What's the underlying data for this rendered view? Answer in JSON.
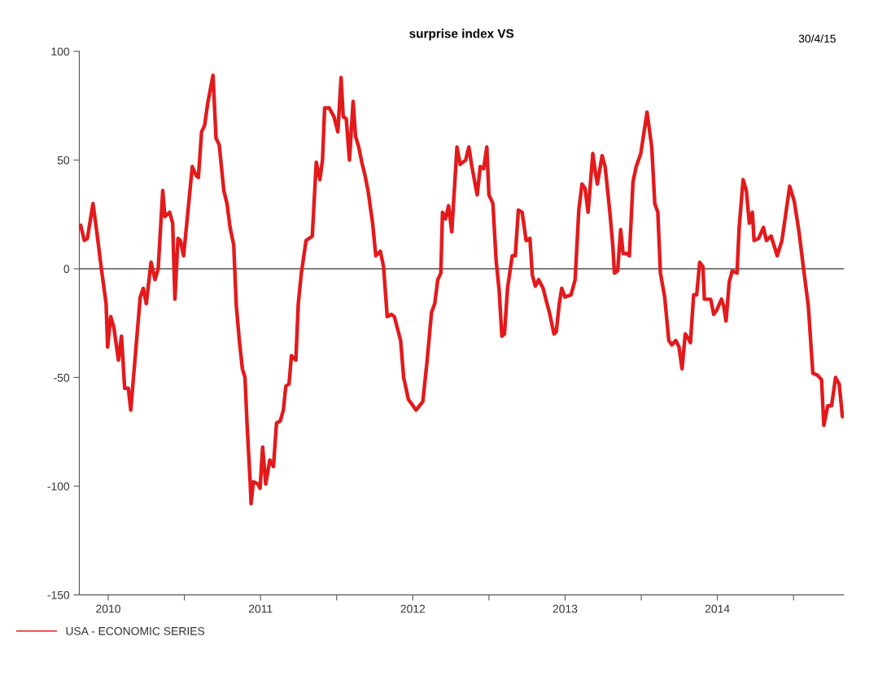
{
  "chart_data": {
    "type": "line",
    "title": "surprise index VS",
    "annotations": [
      "30/4/15"
    ],
    "x": [
      2010.319,
      2010.343,
      2010.363,
      2010.4,
      2010.425,
      2010.455,
      2010.486,
      2010.496,
      2010.516,
      2010.537,
      2010.567,
      2010.587,
      2010.608,
      2010.632,
      2010.648,
      2010.679,
      2010.71,
      2010.73,
      2010.75,
      2010.781,
      2010.807,
      2010.828,
      2010.858,
      2010.872,
      2010.903,
      2010.923,
      2010.938,
      2010.958,
      2010.974,
      2010.995,
      2011.052,
      2011.076,
      2011.092,
      2011.113,
      2011.133,
      2011.153,
      2011.188,
      2011.208,
      2011.229,
      2011.259,
      2011.28,
      2011.3,
      2011.324,
      2011.341,
      2011.361,
      2011.381,
      2011.398,
      2011.412,
      2011.432,
      2011.438,
      2011.453,
      2011.483,
      2011.497,
      2011.514,
      2011.534,
      2011.561,
      2011.585,
      2011.605,
      2011.63,
      2011.65,
      2011.666,
      2011.687,
      2011.703,
      2011.732,
      2011.748,
      2011.768,
      2011.799,
      2011.84,
      2011.866,
      2011.89,
      2011.907,
      2011.921,
      2011.951,
      2011.982,
      2012.008,
      2012.029,
      2012.043,
      2012.063,
      2012.084,
      2012.108,
      2012.124,
      2012.145,
      2012.165,
      2012.186,
      2012.206,
      2012.236,
      2012.257,
      2012.287,
      2012.308,
      2012.332,
      2012.359,
      2012.379,
      2012.42,
      2012.44,
      2012.471,
      2012.521,
      2012.566,
      2012.593,
      2012.623,
      2012.644,
      2012.664,
      2012.684,
      2012.695,
      2012.715,
      2012.735,
      2012.756,
      2012.79,
      2012.811,
      2012.847,
      2012.868,
      2012.888,
      2012.923,
      2012.943,
      2012.965,
      2012.986,
      2013.0,
      2013.026,
      2013.047,
      2013.067,
      2013.085,
      2013.102,
      2013.122,
      2013.153,
      2013.173,
      2013.193,
      2013.218,
      2013.244,
      2013.269,
      2013.285,
      2013.305,
      2013.326,
      2013.356,
      2013.381,
      2013.397,
      2013.427,
      2013.442,
      2013.462,
      2013.478,
      2013.499,
      2013.539,
      2013.566,
      2013.59,
      2013.611,
      2013.631,
      2013.651,
      2013.682,
      2013.702,
      2013.712,
      2013.743,
      2013.763,
      2013.794,
      2013.814,
      2013.824,
      2013.845,
      2013.865,
      2013.881,
      2013.906,
      2013.922,
      2013.946,
      2013.967,
      2013.997,
      2014.038,
      2014.069,
      2014.089,
      2014.109,
      2014.126,
      2014.154,
      2014.181,
      2014.201,
      2014.227,
      2014.248,
      2014.268,
      2014.289,
      2014.309,
      2014.323,
      2014.344,
      2014.364,
      2014.384,
      2014.405,
      2014.415,
      2014.435,
      2014.456,
      2014.476,
      2014.496,
      2014.527,
      2014.541,
      2014.557,
      2014.578,
      2014.598,
      2014.629,
      2014.643,
      2014.669,
      2014.69,
      2014.71,
      2014.73,
      2014.741,
      2014.771,
      2014.802,
      2014.822,
      2014.853,
      2014.893,
      2014.924,
      2014.975,
      2015.005,
      2015.036,
      2015.066,
      2015.097,
      2015.127,
      2015.158,
      2015.184,
      2015.199,
      2015.225,
      2015.25,
      2015.276,
      2015.3,
      2015.321
    ],
    "series": [
      {
        "name": "USA - ECONOMIC SERIES",
        "color": "#e31a1c",
        "values": [
          20,
          13,
          14,
          30,
          17,
          0,
          -16,
          -36,
          -22,
          -27,
          -42,
          -31,
          -55,
          -55,
          -65,
          -39,
          -13,
          -9,
          -16,
          3,
          -5,
          0,
          36,
          24,
          26,
          21,
          -14,
          14,
          13,
          6,
          47,
          43,
          42,
          63,
          66,
          76,
          89,
          60,
          57,
          36,
          30,
          19,
          11,
          -17,
          -33,
          -46,
          -50,
          -72,
          -98,
          -108,
          -98,
          -99,
          -101,
          -82,
          -99,
          -88,
          -91,
          -71,
          -70,
          -65,
          -54,
          -53,
          -40,
          -42,
          -16,
          -2,
          13,
          15,
          49,
          41,
          50,
          74,
          74,
          70,
          63,
          88,
          70,
          69,
          50,
          77,
          61,
          56,
          49,
          43,
          36,
          21,
          6,
          8,
          1,
          -22,
          -21,
          -22,
          -33,
          -50,
          -60,
          -65,
          -61,
          -43,
          -20,
          -16,
          -5,
          -2,
          26,
          23,
          29,
          17,
          56,
          48,
          50,
          56,
          47,
          34,
          47,
          46,
          56,
          34,
          30,
          4,
          -10,
          -31,
          -30,
          -9,
          6,
          6,
          27,
          26,
          13,
          14,
          -3,
          -8,
          -5,
          -9,
          -16,
          -20,
          -30,
          -29,
          -16,
          -9,
          -13,
          -12,
          -5,
          27,
          39,
          37,
          26,
          53,
          43,
          39,
          52,
          47,
          26,
          10,
          -2,
          -1,
          18,
          7,
          7,
          6,
          40,
          47,
          53,
          72,
          56,
          30,
          26,
          -2,
          -13,
          -33,
          -35,
          -33,
          -36,
          -46,
          -30,
          -32,
          -34,
          -12,
          -12,
          3,
          1,
          -14,
          -14,
          -14,
          -21,
          -19,
          -14,
          -17,
          -24,
          -6,
          -1,
          -2,
          19,
          41,
          36,
          21,
          26,
          13,
          14,
          19,
          13,
          15,
          6,
          13,
          38,
          31,
          17,
          0,
          -17,
          -48,
          -49,
          -51,
          -72,
          -63,
          -63,
          -50,
          -53,
          -68
        ]
      }
    ],
    "xlim": [
      2010.31,
      2015.33
    ],
    "xticks": [
      {
        "value": 2011,
        "label": null
      },
      {
        "value": 2012,
        "label": null
      },
      {
        "value": 2013,
        "label": null
      },
      {
        "value": 2014,
        "label": null
      },
      {
        "value": 2015,
        "label": null
      },
      {
        "value": 2010.5,
        "label": "2010"
      },
      {
        "value": 2011.5,
        "label": "2011"
      },
      {
        "value": 2012.5,
        "label": "2012"
      },
      {
        "value": 2013.5,
        "label": "2013"
      },
      {
        "value": 2014.5,
        "label": "2014"
      }
    ],
    "ylim": [
      -150,
      100
    ],
    "yticks": [
      -150,
      -100,
      -50,
      0,
      50,
      100
    ],
    "ref_lines": [
      {
        "axis": "y",
        "value": 0,
        "color": "#555555"
      }
    ],
    "legend": "bottom left",
    "grid": false
  }
}
